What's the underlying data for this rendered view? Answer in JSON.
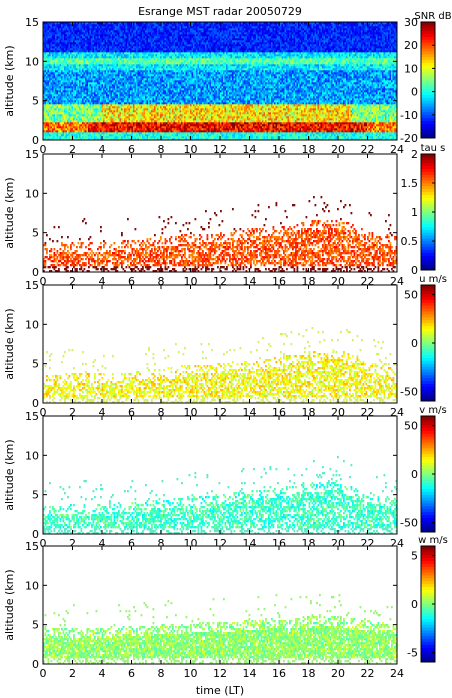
{
  "figure": {
    "title": "Esrange MST radar 20050729",
    "xlabel": "time (LT)"
  },
  "chart_data": [
    {
      "type": "heatmap",
      "title": "Esrange MST radar 20050729",
      "ylabel": "altitude (km)",
      "xlim": [
        0,
        24
      ],
      "ylim": [
        0,
        15
      ],
      "x_ticks": [
        "0",
        "2",
        "4",
        "6",
        "8",
        "10",
        "12",
        "14",
        "16",
        "18",
        "20",
        "22",
        "24"
      ],
      "y_ticks": [
        "0",
        "5",
        "10",
        "15"
      ],
      "colorbar": {
        "label": "SNR dB",
        "range": [
          -20,
          30
        ],
        "ticks": [
          "30",
          "20",
          "10",
          "0",
          "-10",
          "-20"
        ],
        "colormap": "jet"
      },
      "fill": "full",
      "features": [
        {
          "altitude_km": [
            0.8,
            2.2
          ],
          "time_h": [
            0,
            24
          ],
          "level": 25
        },
        {
          "altitude_km": [
            2.0,
            4.5
          ],
          "time_h": [
            4,
            22
          ],
          "level": 18
        },
        {
          "altitude_km": [
            5.0,
            9.0
          ],
          "time_h": [
            0,
            24
          ],
          "level": -5
        },
        {
          "altitude_km": [
            9.5,
            11.0
          ],
          "time_h": [
            0,
            24
          ],
          "level": 2
        },
        {
          "altitude_km": [
            11.0,
            15.0
          ],
          "time_h": [
            0,
            24
          ],
          "level": -15
        }
      ]
    },
    {
      "type": "heatmap",
      "ylabel": "altitude (km)",
      "xlim": [
        0,
        24
      ],
      "ylim": [
        0,
        15
      ],
      "x_ticks": [
        "0",
        "2",
        "4",
        "6",
        "8",
        "10",
        "12",
        "14",
        "16",
        "18",
        "20",
        "22",
        "24"
      ],
      "y_ticks": [
        "0",
        "5",
        "10",
        "15"
      ],
      "colorbar": {
        "label": "tau s",
        "range": [
          0,
          2
        ],
        "ticks": [
          "2",
          "1.5",
          "1",
          "0.5",
          "0"
        ],
        "colormap": "jet"
      },
      "fill": "sparse",
      "envelope_top_km": [
        [
          0,
          3.5
        ],
        [
          2,
          3.8
        ],
        [
          4,
          3.8
        ],
        [
          6,
          4.0
        ],
        [
          8,
          4.5
        ],
        [
          10,
          4.8
        ],
        [
          12,
          5.0
        ],
        [
          14,
          5.5
        ],
        [
          16,
          5.8
        ],
        [
          18,
          6.5
        ],
        [
          20,
          6.8
        ],
        [
          22,
          5.2
        ],
        [
          24,
          4.5
        ]
      ],
      "dominant_level": 1.6,
      "dominant_color": "#7b0f0f"
    },
    {
      "type": "heatmap",
      "ylabel": "altitude (km)",
      "xlim": [
        0,
        24
      ],
      "ylim": [
        0,
        15
      ],
      "x_ticks": [
        "0",
        "2",
        "4",
        "6",
        "8",
        "10",
        "12",
        "14",
        "16",
        "18",
        "20",
        "22",
        "24"
      ],
      "y_ticks": [
        "0",
        "5",
        "10",
        "15"
      ],
      "colorbar": {
        "label": "u m/s",
        "range": [
          -60,
          60
        ],
        "ticks": [
          "50",
          "0",
          "-50"
        ],
        "colormap": "jet"
      },
      "fill": "sparse",
      "envelope_top_km": [
        [
          0,
          3.5
        ],
        [
          2,
          3.8
        ],
        [
          4,
          3.8
        ],
        [
          6,
          4.0
        ],
        [
          8,
          4.5
        ],
        [
          10,
          4.8
        ],
        [
          12,
          5.0
        ],
        [
          14,
          5.5
        ],
        [
          16,
          5.8
        ],
        [
          18,
          6.5
        ],
        [
          20,
          6.8
        ],
        [
          22,
          5.2
        ],
        [
          24,
          4.5
        ]
      ],
      "dominant_level": 15,
      "dominant_color": "#d8f060"
    },
    {
      "type": "heatmap",
      "ylabel": "altitude (km)",
      "xlim": [
        0,
        24
      ],
      "ylim": [
        0,
        15
      ],
      "x_ticks": [
        "0",
        "2",
        "4",
        "6",
        "8",
        "10",
        "12",
        "14",
        "16",
        "18",
        "20",
        "22",
        "24"
      ],
      "y_ticks": [
        "0",
        "5",
        "10",
        "15"
      ],
      "colorbar": {
        "label": "v m/s",
        "range": [
          -60,
          60
        ],
        "ticks": [
          "50",
          "0",
          "-50"
        ],
        "colormap": "jet"
      },
      "fill": "sparse",
      "envelope_top_km": [
        [
          0,
          3.5
        ],
        [
          2,
          3.8
        ],
        [
          4,
          3.8
        ],
        [
          6,
          4.0
        ],
        [
          8,
          4.5
        ],
        [
          10,
          4.8
        ],
        [
          12,
          5.0
        ],
        [
          14,
          5.5
        ],
        [
          16,
          5.8
        ],
        [
          18,
          6.5
        ],
        [
          20,
          6.8
        ],
        [
          22,
          5.2
        ],
        [
          24,
          4.5
        ]
      ],
      "dominant_level": -8,
      "dominant_color": "#60e8c8"
    },
    {
      "type": "heatmap",
      "ylabel": "altitude (km)",
      "xlim": [
        0,
        24
      ],
      "ylim": [
        0,
        15
      ],
      "x_ticks": [
        "0",
        "2",
        "4",
        "6",
        "8",
        "10",
        "12",
        "14",
        "16",
        "18",
        "20",
        "22",
        "24"
      ],
      "y_ticks": [
        "0",
        "5",
        "10",
        "15"
      ],
      "colorbar": {
        "label": "w m/s",
        "range": [
          -6,
          6
        ],
        "ticks": [
          "5",
          "0",
          "-5"
        ],
        "colormap": "jet"
      },
      "fill": "dense_lower",
      "envelope_top_km": [
        [
          0,
          4.5
        ],
        [
          2,
          4.6
        ],
        [
          4,
          4.5
        ],
        [
          6,
          4.8
        ],
        [
          8,
          5.0
        ],
        [
          10,
          5.2
        ],
        [
          12,
          5.3
        ],
        [
          14,
          5.5
        ],
        [
          16,
          5.8
        ],
        [
          18,
          6.0
        ],
        [
          20,
          6.0
        ],
        [
          22,
          5.5
        ],
        [
          24,
          5.0
        ]
      ],
      "dominant_level": 0.2,
      "dominant_color": "#a0f080"
    }
  ]
}
